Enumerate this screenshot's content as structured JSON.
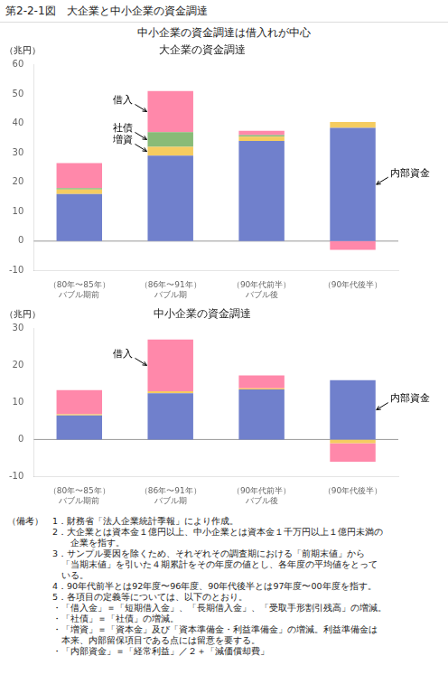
{
  "title": "第2-2-1図　大企業と中小企業の資金調達",
  "subtitle": "中小企業の資金調達は借入れが中心",
  "notes": [
    "（備考）　1．財務省「法人企業統計季報」により作成。",
    "　　　　　2．大企業とは資本金１億円以上、中小企業とは資本金１千万円以上１億円未満の",
    "　　　　　　　企業を指す。",
    "　　　　　3．サンプル要因を除くため、それぞれその調査期における「前期末値」から",
    "　　　　　　「当期末値」を引いた４期累計をその年度の値とし、各年度の平均値をとって",
    "　　　　　　いる。",
    "　　　　　4．90年代前半とは92年度〜96年度、90年代後半とは97年度〜00年度を指す。",
    "　　　　　5．各項目の定義等については、以下のとおり。",
    "　　　　　・「借入金」＝「短期借入金」、「長期借入金」、「受取手形割引残高」の増減。",
    "　　　　　・「社債」＝「社債」の増減。",
    "　　　　　・「増資」＝「資本金」及び「資本準備金・利益準備金」の増減。利益準備金は",
    "　　　　　　本来、内部留保項目である点には留意を要する。",
    "　　　　　・「内部資金」＝「経常利益」／２＋「減価償却費」"
  ],
  "chart_data": [
    {
      "type": "bar",
      "title": "大企業の資金調達",
      "ylabel": "（兆円）",
      "categories": [
        "（80年〜85年）\nバブル期前",
        "（86年〜91年）\nバブル期",
        "（90年代前半）\nバブル後",
        "（90年代後半）"
      ],
      "series": [
        {
          "name": "内部資金",
          "color": "#7080cc",
          "values": [
            16.0,
            29.0,
            34.0,
            38.5
          ]
        },
        {
          "name": "増資",
          "color": "#f5cc60",
          "values": [
            1.5,
            3.0,
            1.5,
            2.0
          ]
        },
        {
          "name": "社債",
          "color": "#88bb77",
          "values": [
            0.5,
            5.0,
            0.5,
            0.0
          ]
        },
        {
          "name": "借入",
          "color": "#ff88aa",
          "values": [
            8.5,
            14.0,
            1.5,
            -3.0
          ]
        }
      ],
      "ylim": [
        -10,
        60
      ],
      "yticks": [
        -10,
        0,
        10,
        20,
        30,
        40,
        50,
        60
      ],
      "stacked": true,
      "grid": false,
      "legend": false,
      "annotations": [
        "借入",
        "社債",
        "増資",
        "内部資金"
      ]
    },
    {
      "type": "bar",
      "title": "中小企業の資金調達",
      "ylabel": "（兆円）",
      "categories": [
        "（80年〜85年）\nバブル期前",
        "（86年〜91年）\nバブル期",
        "（90年代前半）\nバブル後",
        "（90年代後半）"
      ],
      "series": [
        {
          "name": "内部資金",
          "color": "#7080cc",
          "values": [
            6.5,
            12.5,
            13.5,
            16.0
          ]
        },
        {
          "name": "増資",
          "color": "#f5cc60",
          "values": [
            0.3,
            0.5,
            0.3,
            -1.0
          ]
        },
        {
          "name": "社債",
          "color": "#88bb77",
          "values": [
            0.0,
            0.0,
            0.0,
            0.0
          ]
        },
        {
          "name": "借入",
          "color": "#ff88aa",
          "values": [
            6.5,
            14.0,
            3.5,
            -5.0
          ]
        }
      ],
      "ylim": [
        -10,
        30
      ],
      "yticks": [
        -10,
        0,
        10,
        20,
        30
      ],
      "stacked": true,
      "grid": false,
      "legend": false,
      "annotations": [
        "借入",
        "内部資金"
      ]
    }
  ]
}
